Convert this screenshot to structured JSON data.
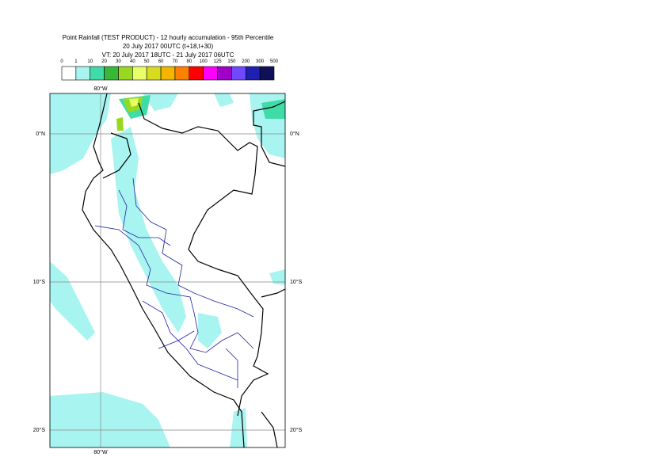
{
  "header": {
    "title": "Point Rainfall (TEST PRODUCT) - 12 hourly accumulation - 95th Percentile",
    "run": "20 July 2017 00UTC (t+18,t+30)",
    "valid_time": "VT: 20 July 2017 18UTC - 21 July 2017 06UTC"
  },
  "colorbar": {
    "labels": [
      0,
      1,
      10,
      20,
      30,
      40,
      50,
      60,
      70,
      80,
      100,
      125,
      150,
      200,
      300,
      500
    ],
    "colors": [
      "#ffffff",
      "#a8f4f0",
      "#40dca8",
      "#38b838",
      "#98d820",
      "#e8ff68",
      "#d8dc20",
      "#f4b400",
      "#ff8000",
      "#ff0000",
      "#ff00ff",
      "#a000c8",
      "#7048ff",
      "#2020b0",
      "#10105a"
    ]
  },
  "map": {
    "lon_labels": [
      "80°W"
    ],
    "lat_labels": [
      "0°N",
      "10°S",
      "20°S"
    ]
  }
}
